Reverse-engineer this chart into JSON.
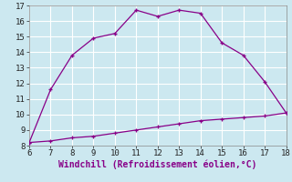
{
  "xlabel": "Windchill (Refroidissement éolien,°C)",
  "x_upper": [
    6,
    7,
    8,
    9,
    10,
    11,
    12,
    13,
    14,
    15,
    16,
    17,
    18
  ],
  "y_upper": [
    8.2,
    11.6,
    13.8,
    14.9,
    15.2,
    16.7,
    16.3,
    16.7,
    16.5,
    14.6,
    13.8,
    12.1,
    10.1
  ],
  "x_lower": [
    6,
    7,
    8,
    9,
    10,
    11,
    12,
    13,
    14,
    15,
    16,
    17,
    18
  ],
  "y_lower": [
    8.2,
    8.3,
    8.5,
    8.6,
    8.8,
    9.0,
    9.2,
    9.4,
    9.6,
    9.7,
    9.8,
    9.9,
    10.1
  ],
  "line_color": "#880088",
  "bg_color": "#cce8f0",
  "grid_color": "#ffffff",
  "xlim": [
    6,
    18
  ],
  "ylim": [
    8,
    17
  ],
  "xticks": [
    6,
    7,
    8,
    9,
    10,
    11,
    12,
    13,
    14,
    15,
    16,
    17,
    18
  ],
  "yticks": [
    8,
    9,
    10,
    11,
    12,
    13,
    14,
    15,
    16,
    17
  ],
  "tick_fontsize": 6.5,
  "xlabel_fontsize": 7,
  "marker": "+"
}
